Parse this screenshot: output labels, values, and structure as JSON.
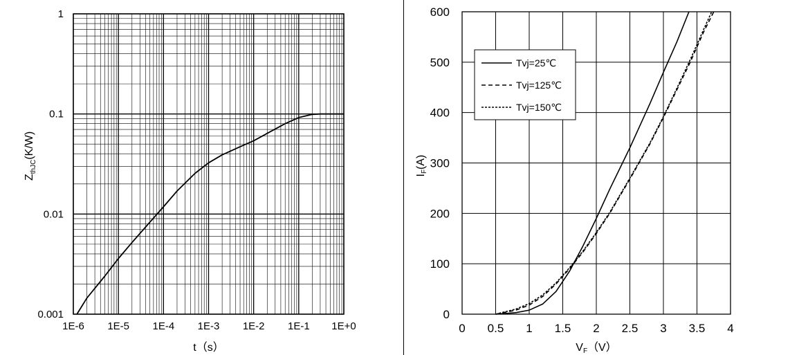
{
  "chart_data": [
    {
      "type": "line",
      "title": "",
      "xlabel": "t（s）",
      "ylabel_main": "Z",
      "ylabel_sub": "thJC",
      "ylabel_rest": "(K/W)",
      "xscale": "log",
      "yscale": "log",
      "xlim": [
        1e-06,
        1
      ],
      "ylim": [
        0.001,
        1
      ],
      "grid": true,
      "xticks": [
        {
          "value": 1e-06,
          "label": "1E-6"
        },
        {
          "value": 1e-05,
          "label": "1E-5"
        },
        {
          "value": 0.0001,
          "label": "1E-4"
        },
        {
          "value": 0.001,
          "label": "1E-3"
        },
        {
          "value": 0.01,
          "label": "1E-2"
        },
        {
          "value": 0.1,
          "label": "1E-1"
        },
        {
          "value": 1,
          "label": "1E+0"
        }
      ],
      "yticks": [
        {
          "value": 0.001,
          "label": "0.001"
        },
        {
          "value": 0.01,
          "label": "0.01"
        },
        {
          "value": 0.1,
          "label": "0.1"
        },
        {
          "value": 1,
          "label": "1"
        }
      ],
      "series": [
        {
          "style": "solid",
          "x": [
            1.2e-06,
            2e-06,
            5e-06,
            1e-05,
            2e-05,
            5e-05,
            0.0001,
            0.0002,
            0.0005,
            0.001,
            0.002,
            0.005,
            0.01,
            0.02,
            0.05,
            0.1,
            0.2,
            0.3,
            0.5,
            1
          ],
          "y": [
            0.001,
            0.00145,
            0.0024,
            0.0036,
            0.0052,
            0.0083,
            0.0118,
            0.017,
            0.0255,
            0.0325,
            0.039,
            0.047,
            0.054,
            0.064,
            0.08,
            0.092,
            0.099,
            0.1,
            0.1,
            0.1
          ]
        }
      ]
    },
    {
      "type": "line",
      "title": "",
      "xlabel_main": "V",
      "xlabel_sub": "F",
      "xlabel_rest": "（V）",
      "ylabel_main": "I",
      "ylabel_sub": "F",
      "ylabel_rest": "(A)",
      "xlim": [
        0,
        4
      ],
      "ylim": [
        0,
        600
      ],
      "grid": true,
      "legend_position": "top-left",
      "xticks": [
        0,
        0.5,
        1,
        1.5,
        2,
        2.5,
        3,
        3.5,
        4
      ],
      "yticks": [
        0,
        100,
        200,
        300,
        400,
        500,
        600
      ],
      "series": [
        {
          "name": "Tvj=25℃",
          "style": "solid",
          "x": [
            0.5,
            0.8,
            1.0,
            1.2,
            1.4,
            1.6,
            1.8,
            2.0,
            2.2,
            2.5,
            2.8,
            3.0,
            3.2,
            3.38
          ],
          "y": [
            0,
            3,
            8,
            20,
            45,
            85,
            135,
            190,
            248,
            330,
            418,
            480,
            540,
            600
          ]
        },
        {
          "name": "Tvj=125℃",
          "style": "dashed",
          "x": [
            0.5,
            0.8,
            1.0,
            1.2,
            1.4,
            1.6,
            1.8,
            2.0,
            2.2,
            2.5,
            2.8,
            3.0,
            3.2,
            3.4,
            3.6,
            3.75
          ],
          "y": [
            0,
            8,
            18,
            35,
            60,
            90,
            123,
            160,
            200,
            268,
            338,
            390,
            445,
            500,
            560,
            600
          ]
        },
        {
          "name": "Tvj=150℃",
          "style": "dotted",
          "x": [
            0.5,
            0.8,
            1.0,
            1.2,
            1.4,
            1.6,
            1.8,
            2.0,
            2.2,
            2.5,
            2.8,
            3.0,
            3.2,
            3.4,
            3.6,
            3.72
          ],
          "y": [
            0,
            10,
            21,
            38,
            62,
            92,
            125,
            162,
            202,
            270,
            340,
            392,
            448,
            505,
            565,
            600
          ]
        }
      ]
    }
  ]
}
